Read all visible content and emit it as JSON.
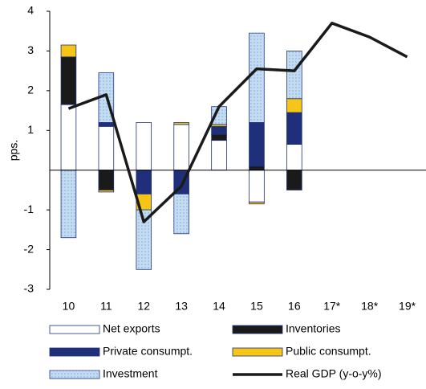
{
  "chart_data": {
    "type": "bar",
    "ylabel": "pps.",
    "categories": [
      "10",
      "11",
      "12",
      "13",
      "14",
      "15",
      "16",
      "17*",
      "18*",
      "19*"
    ],
    "series": [
      {
        "name": "Net exports",
        "color": "#ffffff",
        "values": [
          1.65,
          1.1,
          1.2,
          1.15,
          0.75,
          -0.8,
          0.65,
          null,
          null,
          null
        ]
      },
      {
        "name": "Inventories",
        "color": "#1a1a1a",
        "values": [
          1.2,
          -0.5,
          null,
          null,
          0.15,
          0.1,
          -0.5,
          null,
          null,
          null
        ]
      },
      {
        "name": "Private consumpt.",
        "color": "#1f2f7a",
        "values": [
          null,
          0.1,
          -0.6,
          -0.6,
          0.2,
          1.1,
          0.8,
          null,
          null,
          null
        ]
      },
      {
        "name": "Public consumpt.",
        "color": "#f5c518",
        "values": [
          0.3,
          -0.05,
          -0.4,
          0.05,
          0.05,
          -0.05,
          0.35,
          null,
          null,
          null
        ]
      },
      {
        "name": "Investment",
        "color": "#c3dcf2",
        "values": [
          -1.7,
          1.25,
          -1.5,
          -1.0,
          0.45,
          2.25,
          1.2,
          null,
          null,
          null
        ]
      },
      {
        "name": "Real GDP (y-o-y%)",
        "type": "line",
        "color": "#1a1a1a",
        "values": [
          1.55,
          1.9,
          -1.3,
          -0.4,
          1.6,
          2.55,
          2.5,
          3.7,
          3.35,
          2.85
        ]
      }
    ],
    "ylim": [
      -3,
      4
    ],
    "yticks": [
      4,
      3,
      2,
      1,
      -1,
      -2,
      -3
    ]
  }
}
